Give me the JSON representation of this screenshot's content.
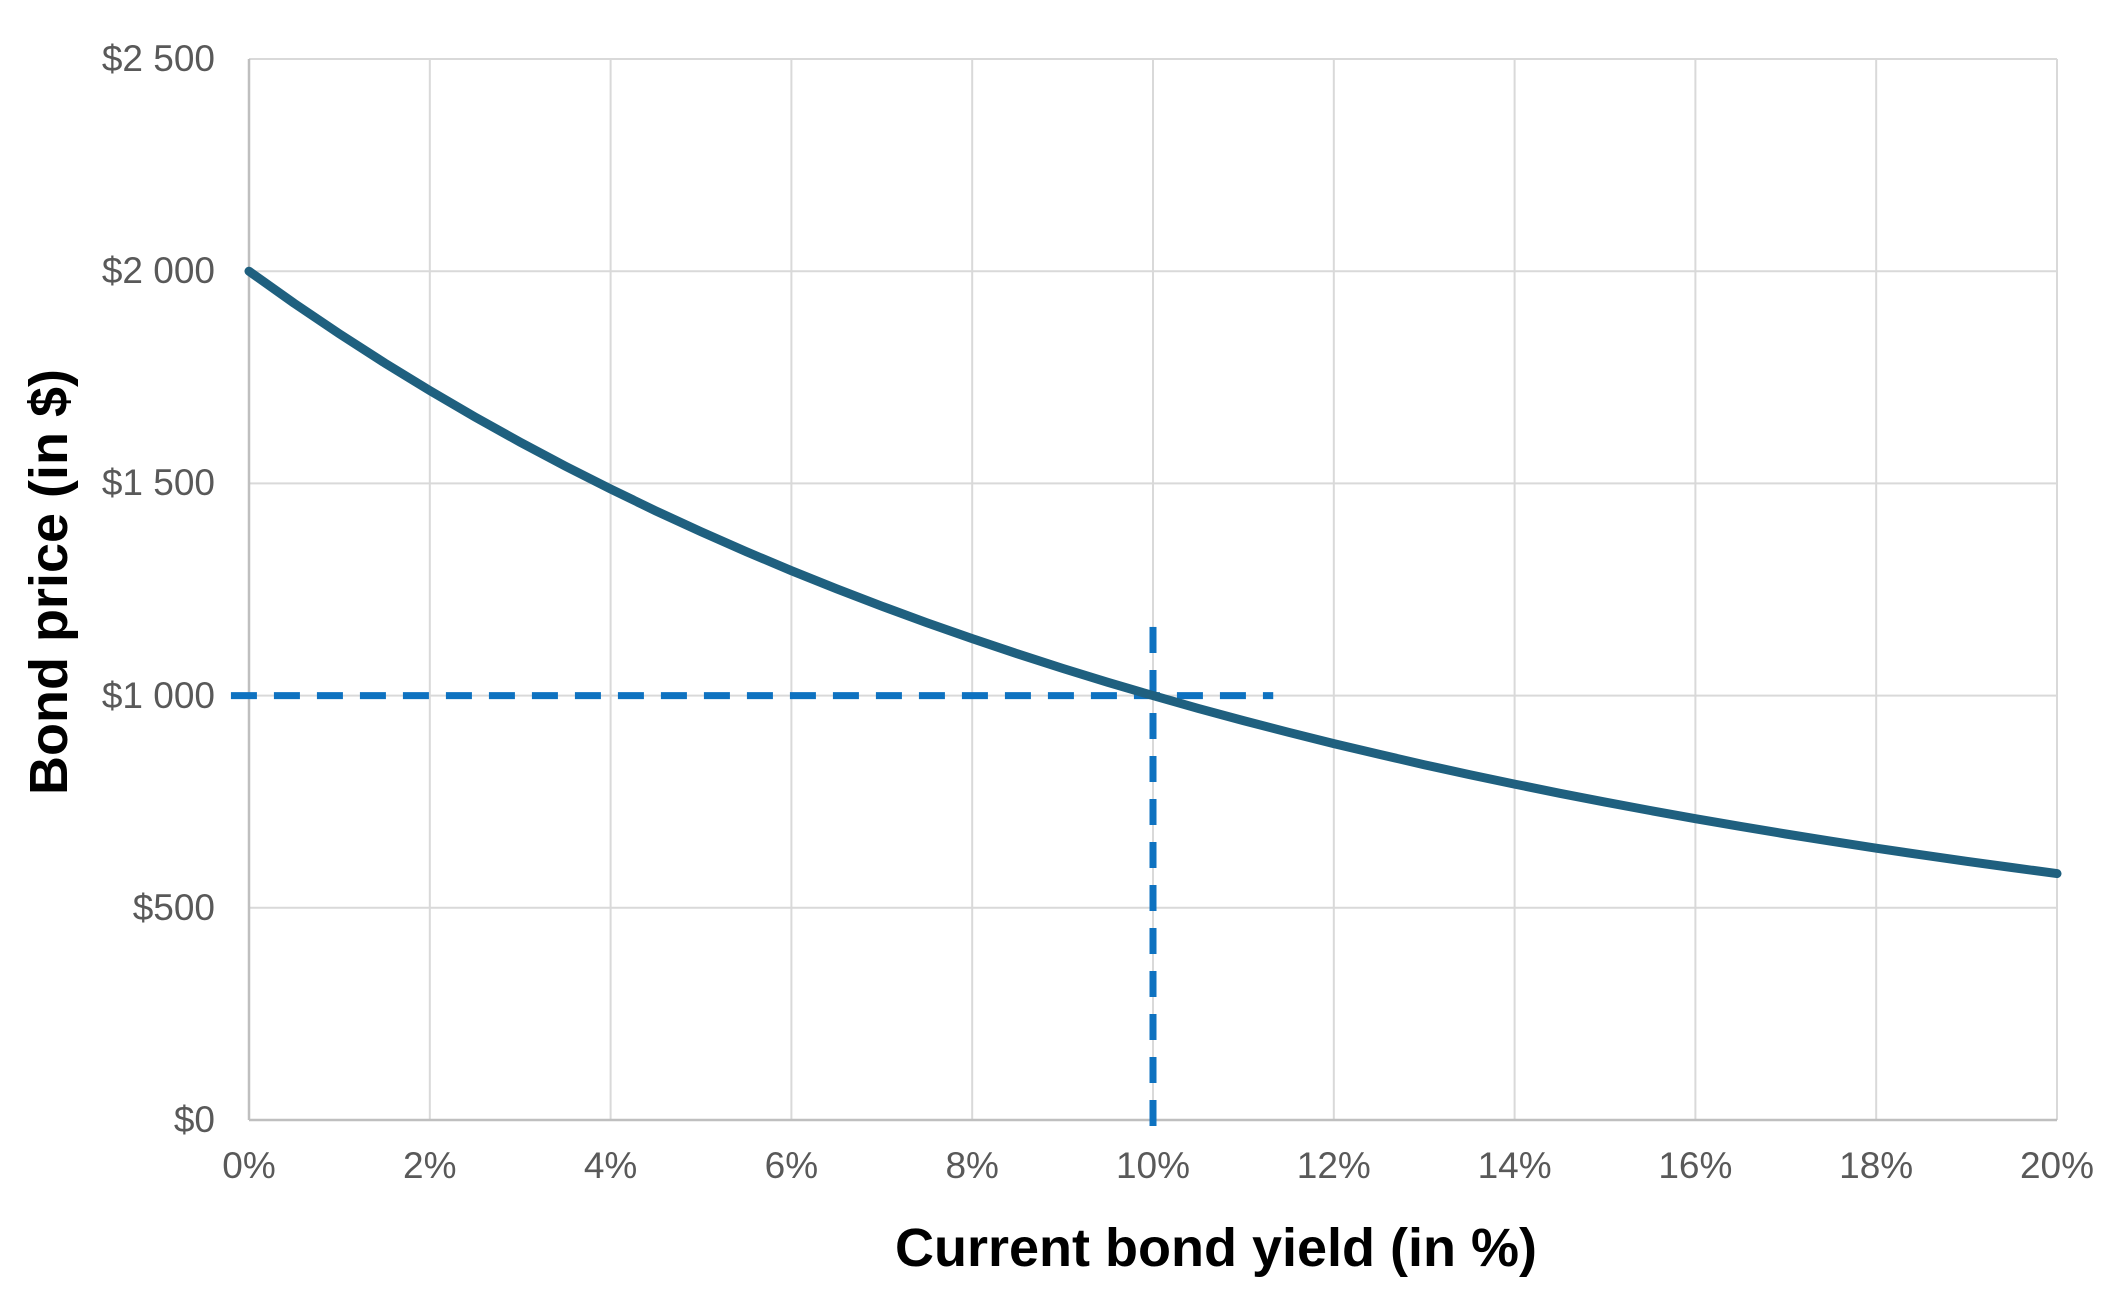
{
  "chart_data": {
    "type": "line",
    "title": "",
    "xlabel": "Current bond yield (in %)",
    "ylabel": "Bond price (in $)",
    "xlim": [
      0,
      0.2
    ],
    "ylim": [
      0,
      2500
    ],
    "grid": true,
    "legend": "none",
    "x_ticks": [
      {
        "value": 0.0,
        "label": "0%"
      },
      {
        "value": 0.02,
        "label": "2%"
      },
      {
        "value": 0.04,
        "label": "4%"
      },
      {
        "value": 0.06,
        "label": "6%"
      },
      {
        "value": 0.08,
        "label": "8%"
      },
      {
        "value": 0.1,
        "label": "10%"
      },
      {
        "value": 0.12,
        "label": "12%"
      },
      {
        "value": 0.14,
        "label": "14%"
      },
      {
        "value": 0.16,
        "label": "16%"
      },
      {
        "value": 0.18,
        "label": "18%"
      },
      {
        "value": 0.2,
        "label": "20%"
      }
    ],
    "y_ticks": [
      {
        "value": 0,
        "label": "$0"
      },
      {
        "value": 500,
        "label": "$500"
      },
      {
        "value": 1000,
        "label": "$1 000"
      },
      {
        "value": 1500,
        "label": "$1 500"
      },
      {
        "value": 2000,
        "label": "$2 000"
      },
      {
        "value": 2500,
        "label": "$2 500"
      }
    ],
    "series": [
      {
        "name": "bond-price-curve",
        "color": "#1f607f",
        "stroke_width": 9,
        "points": [
          [
            0.0,
            2000.0
          ],
          [
            0.005,
            1924.4
          ],
          [
            0.01,
            1852.4
          ],
          [
            0.015,
            1783.9
          ],
          [
            0.02,
            1718.6
          ],
          [
            0.025,
            1656.4
          ],
          [
            0.03,
            1597.1
          ],
          [
            0.035,
            1540.6
          ],
          [
            0.04,
            1486.7
          ],
          [
            0.045,
            1435.2
          ],
          [
            0.05,
            1386.1
          ],
          [
            0.055,
            1339.2
          ],
          [
            0.06,
            1294.4
          ],
          [
            0.065,
            1251.6
          ],
          [
            0.07,
            1210.7
          ],
          [
            0.075,
            1171.6
          ],
          [
            0.08,
            1134.2
          ],
          [
            0.085,
            1098.4
          ],
          [
            0.09,
            1064.2
          ],
          [
            0.095,
            1031.4
          ],
          [
            0.1,
            1000.0
          ],
          [
            0.105,
            969.9
          ],
          [
            0.11,
            941.1
          ],
          [
            0.115,
            913.5
          ],
          [
            0.12,
            887.0
          ],
          [
            0.125,
            861.6
          ],
          [
            0.13,
            837.2
          ],
          [
            0.135,
            813.8
          ],
          [
            0.14,
            791.4
          ],
          [
            0.145,
            769.8
          ],
          [
            0.15,
            749.1
          ],
          [
            0.155,
            729.2
          ],
          [
            0.16,
            710.0
          ],
          [
            0.165,
            691.7
          ],
          [
            0.17,
            673.9
          ],
          [
            0.175,
            657.0
          ],
          [
            0.18,
            640.5
          ],
          [
            0.185,
            625.0
          ],
          [
            0.19,
            609.5
          ],
          [
            0.195,
            594.9
          ],
          [
            0.2,
            580.7
          ]
        ]
      }
    ],
    "reference_lines": [
      {
        "name": "par-price-hline",
        "orientation": "horizontal",
        "value": 1000,
        "from": -0.002,
        "to": 0.1133,
        "color": "#0e72c0",
        "style": "dashed"
      },
      {
        "name": "par-yield-vline",
        "orientation": "vertical",
        "value": 0.1,
        "from": -14,
        "to": 1197,
        "color": "#0e72c0",
        "style": "dashed"
      }
    ],
    "style": {
      "grid_color": "#d9d9d9",
      "axis_color": "#bfbfbf",
      "tick_label_color": "#595959",
      "title_color": "#000000",
      "background": "#ffffff",
      "dash_pattern": "26 17",
      "dash_stroke_width": 7
    }
  }
}
